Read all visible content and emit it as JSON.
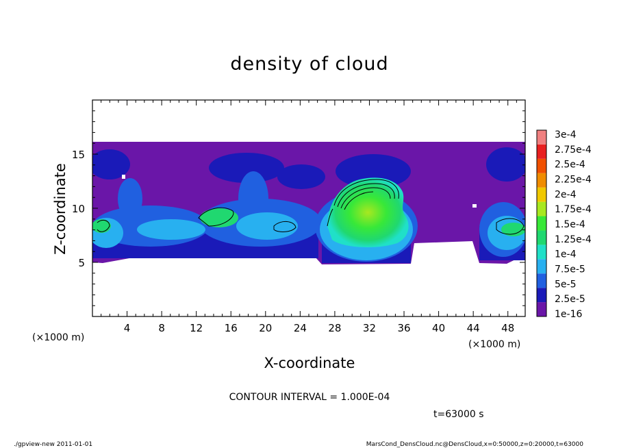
{
  "chart_data": {
    "type": "heatmap",
    "title": "density of cloud",
    "xlabel": "X-coordinate",
    "ylabel": "Z-coordinate",
    "x_unit_left": "(×1000 m)",
    "x_unit_right": "(×1000 m)",
    "xlim": [
      0,
      50
    ],
    "ylim": [
      0,
      20
    ],
    "xticks": [
      "4",
      "8",
      "12",
      "16",
      "20",
      "24",
      "28",
      "32",
      "36",
      "40",
      "44",
      "48"
    ],
    "yticks": [
      "5",
      "10",
      "15"
    ],
    "colorbar": {
      "labels": [
        "1e-16",
        "2.5e-5",
        "5e-5",
        "7.5e-5",
        "1e-4",
        "1.25e-4",
        "1.5e-4",
        "1.75e-4",
        "2e-4",
        "2.25e-4",
        "2.5e-4",
        "2.75e-4",
        "3e-4"
      ],
      "colors": [
        "#6a16a8",
        "#1a1ab8",
        "#2060e0",
        "#28b0f0",
        "#20e0c8",
        "#20d870",
        "#38e838",
        "#a8e820",
        "#f0c800",
        "#f08c00",
        "#f05000",
        "#e82020",
        "#f08080"
      ]
    },
    "cloud_layer_z": [
      5,
      16
    ],
    "contour_interval": "CONTOUR INTERVAL = 1.000E-04",
    "time": "t=63000 s"
  },
  "footer": {
    "left": "./gpview-new 2011-01-01",
    "right": "MarsCond_DensCloud.nc@DensCloud,x=0:50000,z=0:20000,t=63000"
  }
}
